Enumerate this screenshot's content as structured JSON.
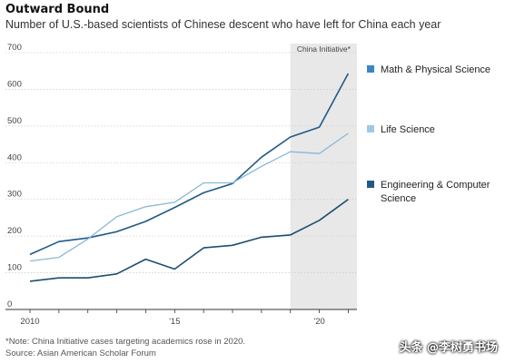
{
  "chart_data": {
    "type": "line",
    "title": "Outward Bound",
    "subtitle": "Number of U.S.-based scientists of Chinese descent who have left for China each year",
    "x": [
      2010,
      2011,
      2012,
      2013,
      2014,
      2015,
      2016,
      2017,
      2018,
      2019,
      2020,
      2021
    ],
    "xticks": [
      {
        "value": 2010,
        "label": "2010"
      },
      {
        "value": 2015,
        "label": "'15"
      },
      {
        "value": 2020,
        "label": "'20"
      }
    ],
    "yticks": [
      0,
      100,
      200,
      300,
      400,
      500,
      600,
      700
    ],
    "xlim": [
      2010,
      2021.3
    ],
    "ylim": [
      0,
      700
    ],
    "grid": true,
    "legend_position": "right",
    "shaded_region": {
      "start": 2019,
      "end": 2021.3,
      "label": "China Initiative*"
    },
    "series": [
      {
        "name": "Math & Physical Science",
        "color": "#1f5a87",
        "values": [
          150,
          185,
          195,
          212,
          240,
          278,
          318,
          343,
          415,
          470,
          497,
          643
        ]
      },
      {
        "name": "Life Science",
        "color": "#8ab8d6",
        "values": [
          132,
          142,
          192,
          253,
          280,
          292,
          345,
          345,
          390,
          430,
          425,
          480
        ]
      },
      {
        "name": "Engineering & Computer Science",
        "color": "#1b4f6e",
        "values": [
          77,
          86,
          86,
          97,
          137,
          110,
          168,
          175,
          197,
          203,
          243,
          300
        ]
      }
    ],
    "legend_markers": [
      "#3b86c4",
      "#9fc9e6",
      "#1f5a87"
    ]
  },
  "notes": {
    "note": "*Note: China Initiative cases targeting academics rose in 2020.",
    "source": "Source: Asian American Scholar Forum"
  },
  "watermark": "头条 @李树勇书场"
}
